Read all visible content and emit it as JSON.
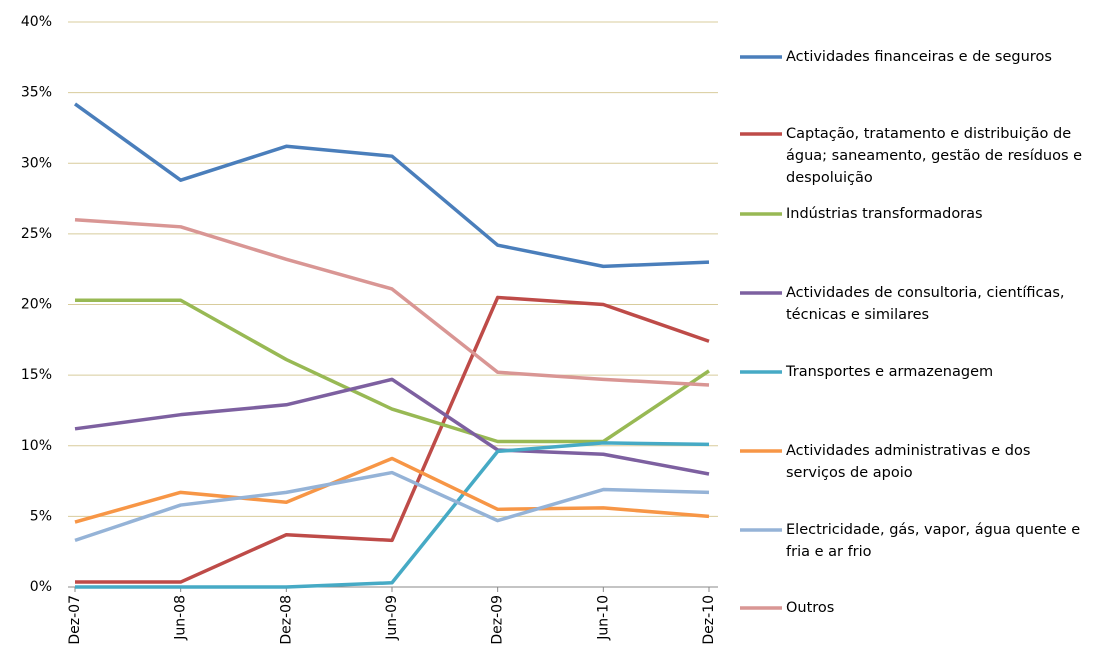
{
  "chart_data": {
    "type": "line",
    "categories": [
      "Dez-07",
      "Jun-08",
      "Dez-08",
      "Jun-09",
      "Dez-09",
      "Jun-10",
      "Dez-10"
    ],
    "series": [
      {
        "name": "Actividades financeiras e de seguros",
        "color": "#4a7ebb",
        "values": [
          34.2,
          28.8,
          31.2,
          30.5,
          24.2,
          22.7,
          23.0
        ]
      },
      {
        "name": "Captação, tratamento e distribuição de água; saneamento, gestão de resíduos e despoluição",
        "color": "#be4b48",
        "values": [
          0.35,
          0.35,
          3.7,
          3.3,
          20.5,
          20.0,
          17.4
        ]
      },
      {
        "name": "Indústrias transformadoras",
        "color": "#98b954",
        "values": [
          20.3,
          20.3,
          16.1,
          12.6,
          10.3,
          10.3,
          15.3
        ]
      },
      {
        "name": "Actividades de consultoria, científicas, técnicas e similares",
        "color": "#7d60a0",
        "values": [
          11.2,
          12.2,
          12.9,
          14.7,
          9.7,
          9.4,
          8.0
        ]
      },
      {
        "name": "Transportes e armazenagem",
        "color": "#46aac5",
        "values": [
          0,
          0,
          0,
          0.3,
          9.6,
          10.2,
          10.1
        ]
      },
      {
        "name": "Actividades administrativas e dos serviços de apoio",
        "color": "#f79646",
        "values": [
          4.6,
          6.7,
          6.0,
          9.1,
          5.5,
          5.6,
          5.0
        ]
      },
      {
        "name": "Electricidade, gás, vapor, água quente e fria e ar frio",
        "color": "#95b3d7",
        "values": [
          3.3,
          5.8,
          6.7,
          8.1,
          4.7,
          6.9,
          6.7
        ]
      },
      {
        "name": "Outros",
        "color": "#d99694",
        "values": [
          26.0,
          25.5,
          23.2,
          21.1,
          15.2,
          14.7,
          14.3
        ]
      }
    ],
    "ylim": [
      0,
      40
    ],
    "yticks": [
      {
        "value": 0,
        "label": "0%"
      },
      {
        "value": 5,
        "label": "5%"
      },
      {
        "value": 10,
        "label": "10%"
      },
      {
        "value": 15,
        "label": "15%"
      },
      {
        "value": 20,
        "label": "20%"
      },
      {
        "value": 25,
        "label": "25%"
      },
      {
        "value": 30,
        "label": "30%"
      },
      {
        "value": 35,
        "label": "35%"
      },
      {
        "value": 40,
        "label": "40%"
      }
    ],
    "grid": true
  }
}
